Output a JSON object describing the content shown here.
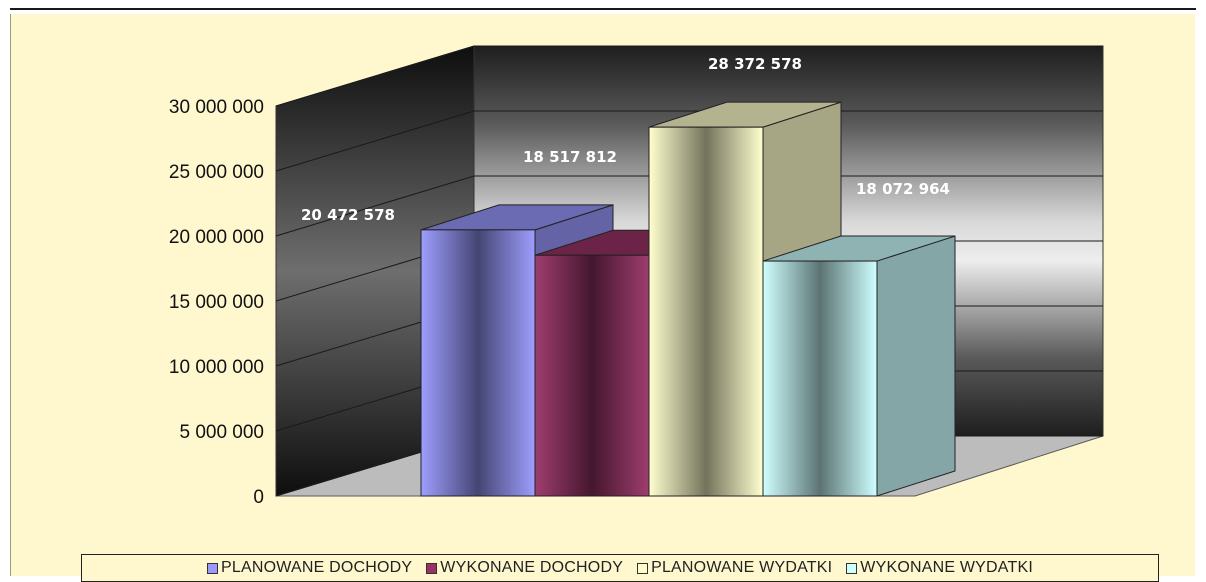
{
  "chart_data": {
    "type": "bar",
    "three_d": true,
    "categories": [
      "PLANOWANE DOCHODY",
      "WYKONANE DOCHODY",
      "PLANOWANE WYDATKI",
      "WYKONANE WYDATKI"
    ],
    "values": [
      20472578,
      18517812,
      28372578,
      18072964
    ],
    "value_labels": [
      "20 472 578",
      "18 517 812",
      "28 372 578",
      "18 072 964"
    ],
    "ylim": [
      0,
      30000000
    ],
    "yticks": [
      0,
      5000000,
      10000000,
      15000000,
      20000000,
      25000000,
      30000000
    ],
    "ytick_labels": [
      "0",
      "5 000 000",
      "10 000 000",
      "15 000 000",
      "20 000 000",
      "25 000 000",
      "30 000 000"
    ],
    "colors": [
      "#9999ff",
      "#993366",
      "#ffffcc",
      "#ccffff"
    ],
    "grid": true,
    "legend_position": "bottom"
  }
}
